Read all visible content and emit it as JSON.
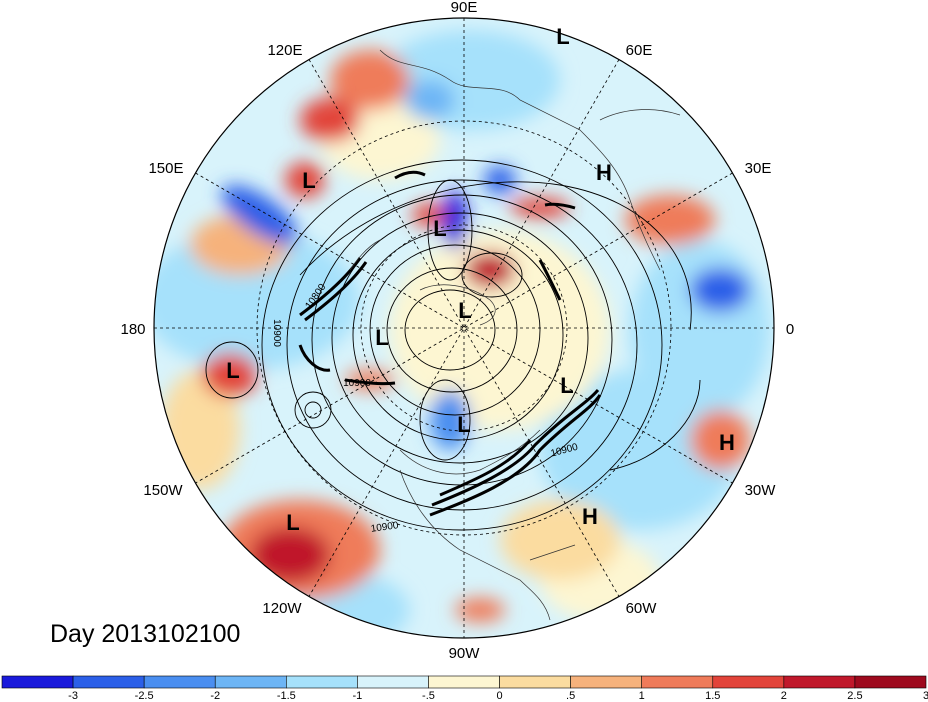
{
  "map": {
    "longitude_labels": [
      "90E",
      "60E",
      "30E",
      "0",
      "30W",
      "60W",
      "90W",
      "120W",
      "150W",
      "180",
      "150E",
      "120E"
    ],
    "pressure_centers": [
      {
        "type": "L",
        "label": "L"
      },
      {
        "type": "L",
        "label": "L"
      },
      {
        "type": "H",
        "label": "H"
      },
      {
        "type": "L",
        "label": "L"
      },
      {
        "type": "L",
        "label": "L"
      },
      {
        "type": "L",
        "label": "L"
      },
      {
        "type": "L",
        "label": "L"
      },
      {
        "type": "L",
        "label": "L"
      },
      {
        "type": "L",
        "label": "L"
      },
      {
        "type": "H",
        "label": "H"
      },
      {
        "type": "H",
        "label": "H"
      },
      {
        "type": "L",
        "label": "L"
      }
    ],
    "contour_labels": [
      "10800",
      "10900",
      "10900",
      "10900",
      "10900"
    ],
    "title": "Day 2013102100"
  },
  "colorbar": {
    "colors": [
      "#1a1adb",
      "#2b5fe8",
      "#4a8ef0",
      "#6db5f5",
      "#a6e1fb",
      "#d8f3fb",
      "#fdf6d2",
      "#fbdca0",
      "#f6b27c",
      "#ef7b5a",
      "#e2443a",
      "#c0182b",
      "#9e0a1e"
    ],
    "tick_labels": [
      "-3",
      "-2.5",
      "-2",
      "-1.5",
      "-1",
      "-.5",
      "0",
      ".5",
      "1",
      "1.5",
      "2",
      "2.5",
      "3"
    ]
  }
}
